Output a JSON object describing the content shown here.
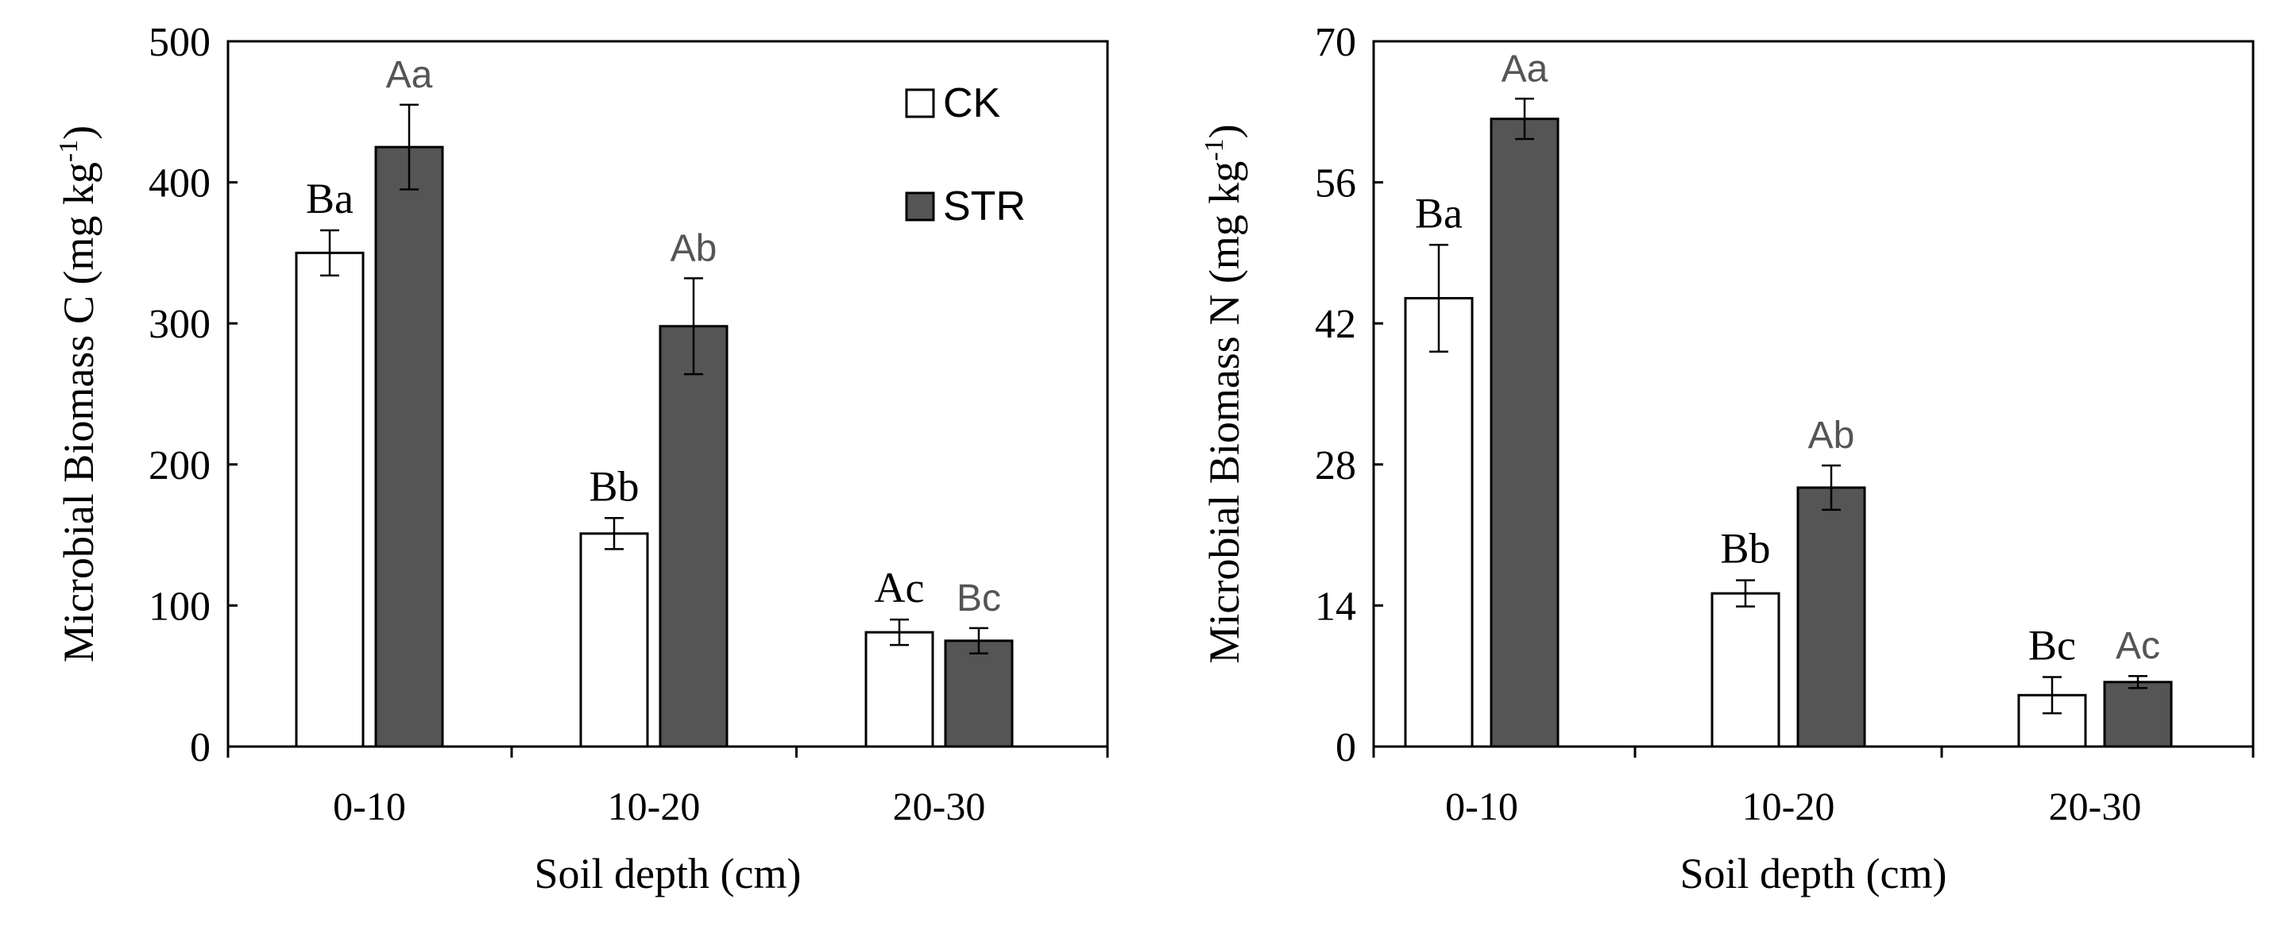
{
  "chart_data": [
    {
      "type": "bar",
      "title": "",
      "xlabel": "Soil depth (cm)",
      "ylabel_main": "Microbial Biomass C (mg kg",
      "ylabel_sup": "-1",
      "ylabel_end": ")",
      "ylim": [
        0,
        500
      ],
      "yticks": [
        0,
        100,
        200,
        300,
        400,
        500
      ],
      "grid": false,
      "legend_position": "top-right",
      "categories": [
        "0-10",
        "10-20",
        "20-30"
      ],
      "series": [
        {
          "name": "CK",
          "color": "#ffffff",
          "values": [
            350,
            151,
            81
          ],
          "errors": [
            16,
            11,
            9
          ],
          "letters": [
            "Ba",
            "Bb",
            "Ac"
          ]
        },
        {
          "name": "STR",
          "color": "#555555",
          "values": [
            425,
            298,
            75
          ],
          "errors": [
            30,
            34,
            9
          ],
          "letters": [
            "Aa",
            "Ab",
            "Bc"
          ]
        }
      ]
    },
    {
      "type": "bar",
      "title": "",
      "xlabel": "Soil depth (cm)",
      "ylabel_main": "Microbial Biomass N (mg kg",
      "ylabel_sup": "-1",
      "ylabel_end": ")",
      "ylim": [
        0,
        70
      ],
      "yticks": [
        0,
        14,
        28,
        42,
        56,
        70
      ],
      "grid": false,
      "legend_position": "",
      "categories": [
        "0-10",
        "10-20",
        "20-30"
      ],
      "series": [
        {
          "name": "CK",
          "color": "#ffffff",
          "values": [
            44.5,
            15.2,
            5.1
          ],
          "errors": [
            5.3,
            1.3,
            1.8
          ],
          "letters": [
            "Ba",
            "Bb",
            "Bc"
          ]
        },
        {
          "name": "STR",
          "color": "#555555",
          "values": [
            62.3,
            25.7,
            6.4
          ],
          "errors": [
            2.0,
            2.2,
            0.6
          ],
          "letters": [
            "Aa",
            "Ab",
            "Ac"
          ]
        }
      ]
    }
  ]
}
